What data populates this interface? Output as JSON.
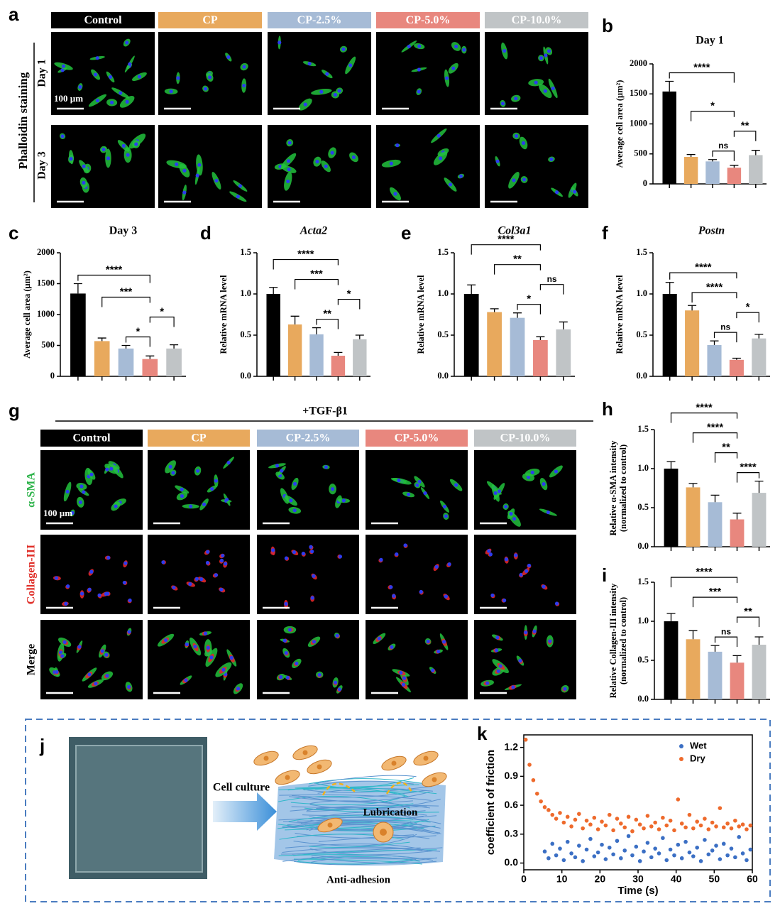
{
  "figure_a": {
    "panel": "a",
    "headers": [
      "Control",
      "CP",
      "CP-2.5%",
      "CP-5.0%",
      "CP-10.0%"
    ],
    "colors": [
      "#000000",
      "#e8a95d",
      "#a6bbd6",
      "#e8877e",
      "#c0c4c6"
    ],
    "row_group": "Phalloidin staining",
    "rows": [
      "Day 1",
      "Day 3"
    ],
    "scale_bar": "100 µm"
  },
  "figure_g": {
    "panel": "g",
    "treatment": "+TGF-β1",
    "headers": [
      "Control",
      "CP",
      "CP-2.5%",
      "CP-5.0%",
      "CP-10.0%"
    ],
    "colors": [
      "#000000",
      "#e8a95d",
      "#a6bbd6",
      "#e8877e",
      "#c0c4c6"
    ],
    "rows": [
      "α-SMA",
      "Collagen-III",
      "Merge"
    ],
    "row_colors": [
      "#2db34a",
      "#e0302a",
      "#000000"
    ],
    "scale_bar": "100 µm"
  },
  "figure_j": {
    "panel": "j",
    "culture": "Cell culture",
    "lubrication": "Lubrication",
    "anti_adhesion": "Anti-adhesion"
  },
  "chart_data": [
    {
      "type": "bar",
      "panel": "b",
      "title": "Day 1",
      "ylabel": "Average cell area (μm²)",
      "categories": [
        null,
        null,
        null,
        null,
        null
      ],
      "values": [
        1540,
        450,
        375,
        270,
        480
      ],
      "errors": [
        170,
        40,
        30,
        40,
        80
      ],
      "colors": [
        "#000000",
        "#e8a95d",
        "#a6bbd6",
        "#e8877e",
        "#c0c4c6"
      ],
      "ylim": [
        0,
        2000
      ],
      "yticks": [
        0,
        500,
        1000,
        1500,
        2000
      ],
      "comparisons": [
        {
          "from": 0,
          "to": 3,
          "label": "****"
        },
        {
          "from": 1,
          "to": 3,
          "label": "*"
        },
        {
          "from": 2,
          "to": 3,
          "label": "ns"
        },
        {
          "from": 3,
          "to": 4,
          "label": "**"
        }
      ]
    },
    {
      "type": "bar",
      "panel": "c",
      "title": "Day 3",
      "ylabel": "Average cell area (μm²)",
      "categories": [
        null,
        null,
        null,
        null,
        null
      ],
      "values": [
        1340,
        570,
        450,
        280,
        450
      ],
      "errors": [
        160,
        50,
        50,
        50,
        60
      ],
      "colors": [
        "#000000",
        "#e8a95d",
        "#a6bbd6",
        "#e8877e",
        "#c0c4c6"
      ],
      "ylim": [
        0,
        2000
      ],
      "yticks": [
        0,
        500,
        1000,
        1500,
        2000
      ],
      "comparisons": [
        {
          "from": 0,
          "to": 3,
          "label": "****"
        },
        {
          "from": 1,
          "to": 3,
          "label": "***"
        },
        {
          "from": 2,
          "to": 3,
          "label": "*"
        },
        {
          "from": 3,
          "to": 4,
          "label": "*"
        }
      ]
    },
    {
      "type": "bar",
      "panel": "d",
      "title": "Acta2",
      "title_style": "italic",
      "ylabel": "Relative mRNA level",
      "categories": [
        null,
        null,
        null,
        null,
        null
      ],
      "values": [
        1.0,
        0.63,
        0.51,
        0.25,
        0.45
      ],
      "errors": [
        0.08,
        0.1,
        0.08,
        0.04,
        0.05
      ],
      "colors": [
        "#000000",
        "#e8a95d",
        "#a6bbd6",
        "#e8877e",
        "#c0c4c6"
      ],
      "ylim": [
        0,
        1.5
      ],
      "yticks": [
        {
          "value": 0,
          "label": "0.0"
        },
        0.5,
        {
          "value": 1,
          "label": "1.0"
        },
        1.5
      ],
      "comparisons": [
        {
          "from": 0,
          "to": 3,
          "label": "****"
        },
        {
          "from": 1,
          "to": 3,
          "label": "***"
        },
        {
          "from": 2,
          "to": 3,
          "label": "**"
        },
        {
          "from": 3,
          "to": 4,
          "label": "*"
        }
      ]
    },
    {
      "type": "bar",
      "panel": "e",
      "title": "Col3a1",
      "title_style": "italic",
      "ylabel": "Relative mRNA level",
      "categories": [
        null,
        null,
        null,
        null,
        null
      ],
      "values": [
        1.0,
        0.78,
        0.71,
        0.44,
        0.57
      ],
      "errors": [
        0.11,
        0.04,
        0.06,
        0.04,
        0.09
      ],
      "colors": [
        "#000000",
        "#e8a95d",
        "#a6bbd6",
        "#e8877e",
        "#c0c4c6"
      ],
      "ylim": [
        0,
        1.5
      ],
      "yticks": [
        {
          "value": 0,
          "label": "0.0"
        },
        0.5,
        {
          "value": 1,
          "label": "1.0"
        },
        1.5
      ],
      "comparisons": [
        {
          "from": 0,
          "to": 3,
          "label": "****"
        },
        {
          "from": 1,
          "to": 3,
          "label": "**"
        },
        {
          "from": 2,
          "to": 3,
          "label": "*"
        },
        {
          "from": 3,
          "to": 4,
          "label": "ns"
        }
      ]
    },
    {
      "type": "bar",
      "panel": "f",
      "title": "Postn",
      "title_style": "italic",
      "ylabel": "Relative mRNA level",
      "categories": [
        null,
        null,
        null,
        null,
        null
      ],
      "values": [
        1.0,
        0.8,
        0.38,
        0.2,
        0.46
      ],
      "errors": [
        0.14,
        0.06,
        0.05,
        0.02,
        0.05
      ],
      "colors": [
        "#000000",
        "#e8a95d",
        "#a6bbd6",
        "#e8877e",
        "#c0c4c6"
      ],
      "ylim": [
        0,
        1.5
      ],
      "yticks": [
        {
          "value": 0,
          "label": "0.0"
        },
        0.5,
        {
          "value": 1,
          "label": "1.0"
        },
        1.5
      ],
      "comparisons": [
        {
          "from": 0,
          "to": 3,
          "label": "****"
        },
        {
          "from": 1,
          "to": 3,
          "label": "****"
        },
        {
          "from": 2,
          "to": 3,
          "label": "ns"
        },
        {
          "from": 3,
          "to": 4,
          "label": "*"
        }
      ]
    },
    {
      "type": "bar",
      "panel": "h",
      "ylabel": [
        "Relative α-SMA intensity",
        "(normalized to control)"
      ],
      "categories": [
        null,
        null,
        null,
        null,
        null
      ],
      "values": [
        1.0,
        0.76,
        0.57,
        0.35,
        0.69
      ],
      "errors": [
        0.09,
        0.05,
        0.09,
        0.08,
        0.15
      ],
      "colors": [
        "#000000",
        "#e8a95d",
        "#a6bbd6",
        "#e8877e",
        "#c0c4c6"
      ],
      "ylim": [
        0,
        1.5
      ],
      "yticks": [
        {
          "value": 0,
          "label": "0.0"
        },
        0.5,
        {
          "value": 1,
          "label": "1.0"
        },
        1.5
      ],
      "comparisons": [
        {
          "from": 1,
          "to": 3,
          "label": "****"
        },
        {
          "from": 0,
          "to": 3,
          "label": "****"
        },
        {
          "from": 3,
          "to": 4,
          "label": "****"
        },
        {
          "from": 2,
          "to": 3,
          "label": "**"
        }
      ]
    },
    {
      "type": "bar",
      "panel": "i",
      "ylabel": [
        "Relative Collagen-III intensity",
        "(normalized to control)"
      ],
      "categories": [
        null,
        null,
        null,
        null,
        null
      ],
      "values": [
        1.0,
        0.77,
        0.61,
        0.47,
        0.7
      ],
      "errors": [
        0.1,
        0.11,
        0.08,
        0.09,
        0.1
      ],
      "colors": [
        "#000000",
        "#e8a95d",
        "#a6bbd6",
        "#e8877e",
        "#c0c4c6"
      ],
      "ylim": [
        0,
        1.5
      ],
      "yticks": [
        {
          "value": 0,
          "label": "0.0"
        },
        0.5,
        {
          "value": 1,
          "label": "1.0"
        },
        1.5
      ],
      "comparisons": [
        {
          "from": 0,
          "to": 3,
          "label": "****"
        },
        {
          "from": 1,
          "to": 3,
          "label": "***"
        },
        {
          "from": 2,
          "to": 3,
          "label": "ns"
        },
        {
          "from": 3,
          "to": 4,
          "label": "**"
        }
      ]
    },
    {
      "type": "scatter",
      "panel": "k",
      "xlabel": "Time (s)",
      "ylabel": "coefficient of friction",
      "xlim": [
        0,
        60
      ],
      "ylim": [
        -0.07,
        1.33
      ],
      "xticks": [
        0,
        10,
        20,
        30,
        40,
        50,
        60
      ],
      "yticks": [
        {
          "value": 0,
          "label": "0.0"
        },
        0.3,
        0.6,
        0.9,
        1.2
      ],
      "legend": "top-right",
      "series": [
        {
          "name": "Wet",
          "color": "#3b6fc4",
          "x": [
            5.5,
            6.5,
            7.5,
            8.5,
            9.5,
            10.5,
            11.5,
            12.5,
            13.5,
            14.5,
            15.5,
            16.5,
            17.5,
            18.5,
            19.5,
            20.5,
            21.5,
            22.5,
            23.5,
            24.5,
            25.5,
            26.5,
            27.5,
            28.5,
            29.5,
            30.5,
            31.5,
            32.5,
            33.5,
            34.5,
            35.5,
            36.5,
            37.5,
            38.5,
            39.5,
            40.5,
            41.5,
            42.5,
            43.5,
            44.5,
            45.5,
            46.5,
            47.5,
            48.5,
            49.5,
            50.5,
            51.5,
            52.5,
            53.5,
            54.5,
            55.5,
            56.5,
            57.5,
            58.5,
            59.5
          ],
          "y": [
            0.12,
            0.05,
            0.2,
            0.08,
            0.15,
            0.03,
            0.22,
            0.1,
            0.06,
            0.18,
            0.02,
            0.14,
            0.25,
            0.07,
            0.11,
            0.19,
            0.04,
            0.16,
            0.09,
            0.23,
            0.05,
            0.13,
            0.28,
            0.08,
            0.17,
            0.02,
            0.12,
            0.21,
            0.06,
            0.15,
            0.1,
            0.26,
            0.03,
            0.14,
            0.08,
            0.19,
            0.05,
            0.22,
            0.11,
            0.07,
            0.16,
            0.02,
            0.24,
            0.09,
            0.13,
            0.18,
            0.04,
            0.2,
            0.08,
            0.15,
            0.06,
            0.27,
            0.1,
            0.03,
            0.14
          ]
        },
        {
          "name": "Dry",
          "color": "#ee6a2c",
          "x": [
            0.5,
            1.5,
            2.5,
            3.5,
            4.5,
            5.5,
            6.5,
            7.5,
            8.5,
            9.5,
            10.5,
            11.5,
            12.5,
            13.5,
            14.5,
            15.5,
            16.5,
            17.5,
            18.5,
            19.5,
            20.5,
            21.5,
            22.5,
            23.5,
            24.5,
            25.5,
            26.5,
            27.5,
            28.5,
            29.5,
            30.5,
            31.5,
            32.5,
            33.5,
            34.5,
            35.5,
            36.5,
            37.5,
            38.5,
            39.5,
            40.5,
            41.5,
            42.5,
            43.5,
            44.5,
            45.5,
            46.5,
            47.5,
            48.5,
            49.5,
            50.5,
            51.5,
            52.5,
            53.5,
            54.5,
            55.5,
            56.5,
            57.5,
            58.5,
            59.5
          ],
          "y": [
            1.28,
            1.02,
            0.86,
            0.72,
            0.64,
            0.58,
            0.55,
            0.5,
            0.46,
            0.52,
            0.42,
            0.48,
            0.38,
            0.45,
            0.51,
            0.36,
            0.44,
            0.4,
            0.47,
            0.35,
            0.43,
            0.39,
            0.5,
            0.34,
            0.46,
            0.41,
            0.37,
            0.48,
            0.33,
            0.45,
            0.4,
            0.36,
            0.49,
            0.38,
            0.42,
            0.35,
            0.47,
            0.39,
            0.44,
            0.34,
            0.66,
            0.41,
            0.37,
            0.5,
            0.36,
            0.43,
            0.39,
            0.46,
            0.35,
            0.42,
            0.38,
            0.57,
            0.37,
            0.41,
            0.36,
            0.44,
            0.38,
            0.4,
            0.35,
            0.39
          ]
        }
      ]
    }
  ]
}
